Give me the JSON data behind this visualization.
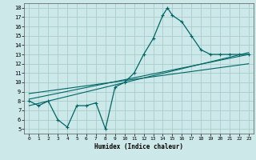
{
  "title": "",
  "xlabel": "Humidex (Indice chaleur)",
  "bg_color": "#cce8e8",
  "grid_color": "#aacccc",
  "line_color": "#006666",
  "xlim": [
    -0.5,
    23.5
  ],
  "ylim": [
    4.5,
    18.5
  ],
  "yticks": [
    5,
    6,
    7,
    8,
    9,
    10,
    11,
    12,
    13,
    14,
    15,
    16,
    17,
    18
  ],
  "xticks": [
    0,
    1,
    2,
    3,
    4,
    5,
    6,
    7,
    8,
    9,
    10,
    11,
    12,
    13,
    14,
    15,
    16,
    17,
    18,
    19,
    20,
    21,
    22,
    23
  ],
  "main_x": [
    0,
    1,
    2,
    3,
    4,
    5,
    6,
    7,
    8,
    9,
    10,
    11,
    12,
    13,
    14,
    14.5,
    15,
    16,
    17,
    18,
    19,
    20,
    21,
    22,
    23
  ],
  "main_y": [
    8.0,
    7.5,
    8.0,
    6.0,
    5.2,
    7.5,
    7.5,
    7.8,
    5.0,
    9.5,
    10.0,
    11.0,
    13.0,
    14.7,
    17.2,
    18.0,
    17.2,
    16.5,
    15.0,
    13.5,
    13.0,
    13.0,
    13.0,
    13.0,
    13.0
  ],
  "line2_x": [
    0,
    23
  ],
  "line2_y": [
    8.2,
    13.0
  ],
  "line3_x": [
    0,
    23
  ],
  "line3_y": [
    8.8,
    12.0
  ],
  "line4_x": [
    0,
    23
  ],
  "line4_y": [
    7.5,
    13.2
  ]
}
